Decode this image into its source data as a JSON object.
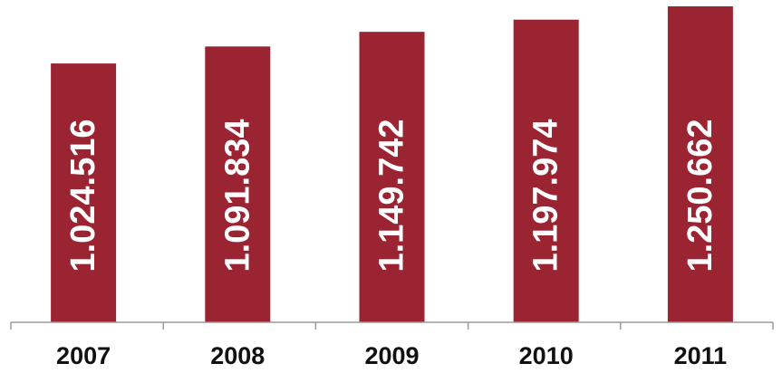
{
  "chart_data": {
    "type": "bar",
    "categories": [
      "2007",
      "2008",
      "2009",
      "2010",
      "2011"
    ],
    "values": [
      1024516,
      1091834,
      1149742,
      1197974,
      1250662
    ],
    "data_labels": [
      "1.024.516",
      "1.091.834",
      "1.149.742",
      "1.197.974",
      "1.250.662"
    ],
    "title": "",
    "xlabel": "",
    "ylabel": "",
    "ylim": [
      0,
      1250662
    ],
    "grid": false,
    "legend": "none",
    "data_label_orientation": "vertical",
    "colors": {
      "bar": "#9b2433",
      "label": "#ffffff",
      "axis": "#9a9a9a"
    }
  }
}
